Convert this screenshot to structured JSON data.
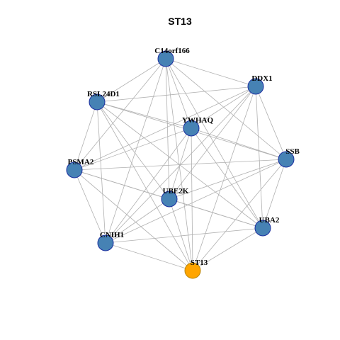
{
  "title": "ST13",
  "nodes": [
    {
      "label": "C14orf166"
    },
    {
      "label": "DDX1"
    },
    {
      "label": "RSL24D1"
    },
    {
      "label": "YWHAQ"
    },
    {
      "label": "SSB"
    },
    {
      "label": "PSMA2"
    },
    {
      "label": "UBE2K"
    },
    {
      "label": "UBA2"
    },
    {
      "label": "CNIH1"
    },
    {
      "label": "ST13"
    }
  ]
}
